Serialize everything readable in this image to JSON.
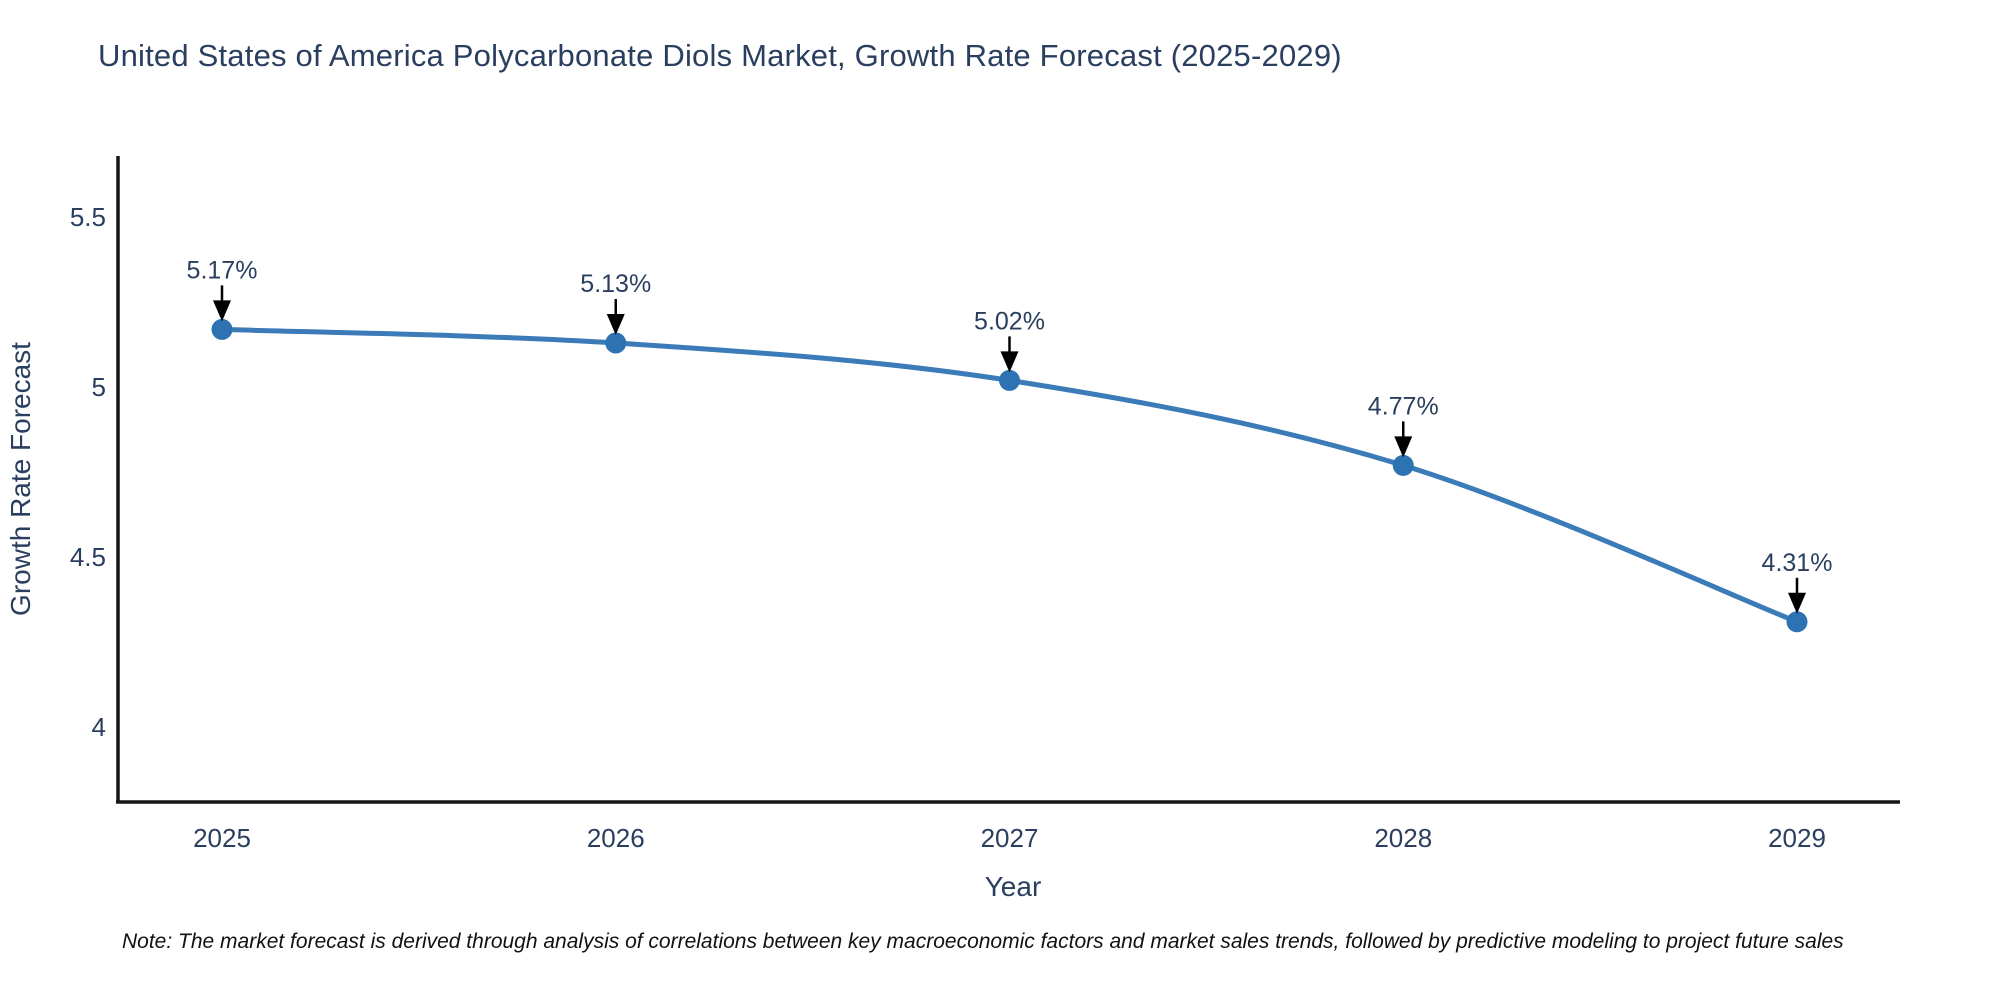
{
  "chart_data": {
    "type": "line",
    "title": "United States of America Polycarbonate Diols Market, Growth Rate Forecast (2025-2029)",
    "xlabel": "Year",
    "ylabel": "Growth Rate Forecast",
    "x": [
      2025,
      2026,
      2027,
      2028,
      2029
    ],
    "x_tick_labels": [
      "2025",
      "2026",
      "2027",
      "2028",
      "2029"
    ],
    "series": [
      {
        "name": "Growth Rate Forecast",
        "values": [
          5.17,
          5.13,
          5.02,
          4.77,
          4.31
        ]
      }
    ],
    "point_labels": [
      "5.17%",
      "5.13%",
      "5.02%",
      "4.77%",
      "4.31%"
    ],
    "y_ticks": [
      4,
      4.5,
      5,
      5.5
    ],
    "y_tick_labels": [
      "4",
      "4.5",
      "5",
      "5.5"
    ],
    "ylim": [
      3.78,
      5.68
    ],
    "grid": false,
    "legend": "none",
    "line_shape": "spline",
    "colors": {
      "line": "#3b7bb8",
      "marker": "#2d72b2",
      "axis_line": "#161616",
      "text": "#2a3f5f",
      "annotation_arrow": "#000000",
      "note_text": "#111111"
    }
  },
  "note": {
    "text": "Note: The market forecast is derived through analysis of correlations between key macroeconomic factors and market sales trends, followed by predictive modeling to project future sales"
  }
}
